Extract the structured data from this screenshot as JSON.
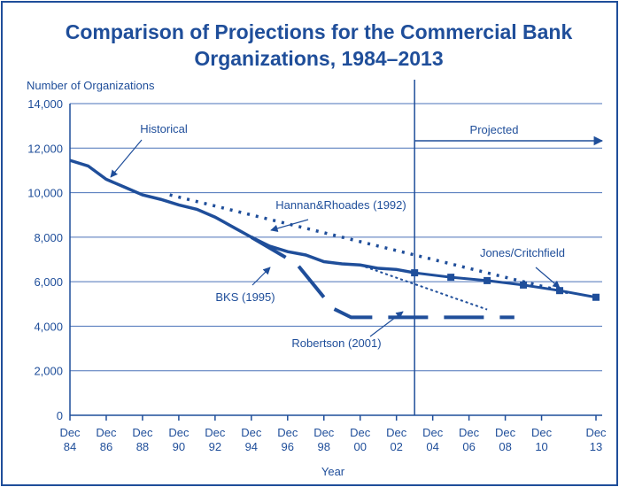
{
  "chart_data": {
    "type": "line",
    "title": [
      "Comparison of Projections for the Commercial Bank",
      "Organizations, 1984–2013"
    ],
    "y_label": "Number of Organizations",
    "x_label": "Year",
    "xlim": [
      1984,
      2013
    ],
    "xticks": [
      {
        "value": 1984,
        "label": "Dec 84"
      },
      {
        "value": 1986,
        "label": "Dec 86"
      },
      {
        "value": 1988,
        "label": "Dec 88"
      },
      {
        "value": 1990,
        "label": "Dec 90"
      },
      {
        "value": 1992,
        "label": "Dec 92"
      },
      {
        "value": 1994,
        "label": "Dec 94"
      },
      {
        "value": 1996,
        "label": "Dec 96"
      },
      {
        "value": 1998,
        "label": "Dec 98"
      },
      {
        "value": 2000,
        "label": "Dec 00"
      },
      {
        "value": 2002,
        "label": "Dec 02"
      },
      {
        "value": 2004,
        "label": "Dec 04"
      },
      {
        "value": 2006,
        "label": "Dec 06"
      },
      {
        "value": 2008,
        "label": "Dec 08"
      },
      {
        "value": 2010,
        "label": "Dec 10"
      },
      {
        "value": 2013,
        "label": "Dec 13"
      }
    ],
    "ylim": [
      0,
      14000
    ],
    "yticks": [
      0,
      {
        "value": 2000,
        "label": "2,000"
      },
      {
        "value": 4000,
        "label": "4,000"
      },
      {
        "value": 6000,
        "label": "6,000"
      },
      {
        "value": 8000,
        "label": "8,000"
      },
      {
        "value": 10000,
        "label": "10,000"
      },
      {
        "value": 12000,
        "label": "12,000"
      },
      {
        "value": 14000,
        "label": "14,000"
      }
    ],
    "grid": true,
    "divider_x": 2003,
    "divider_label": "Projected",
    "series": [
      {
        "name": "Historical",
        "color": "#1f4e9a",
        "style": "solid",
        "x": [
          1984,
          1985,
          1986,
          1987,
          1988,
          1989,
          1990,
          1991,
          1992,
          1993,
          1994,
          1995,
          1996,
          1997,
          1998,
          1999,
          2000,
          2001,
          2002,
          2003
        ],
        "values": [
          11450,
          11200,
          10600,
          10250,
          9900,
          9700,
          9450,
          9250,
          8900,
          8450,
          8000,
          7600,
          7350,
          7200,
          6900,
          6800,
          6750,
          6600,
          6550,
          6400
        ]
      },
      {
        "name": "Hannan&Rhoades (1992)",
        "color": "#1f4e9a",
        "style": "dotted",
        "x": [
          1989.5,
          2011.5
        ],
        "values": [
          9900,
          5500
        ]
      },
      {
        "name": "BKS (1995)",
        "color": "#1f4e9a",
        "style": "dashed",
        "x": [
          1994,
          1996.5,
          1998.5,
          1999.5,
          2008.5
        ],
        "values": [
          8000,
          6800,
          4800,
          4400,
          4400
        ]
      },
      {
        "name": "Robertson (2001)",
        "color": "#1f4e9a",
        "style": "thin-dotted",
        "x": [
          2000,
          2007
        ],
        "values": [
          6750,
          4750
        ]
      },
      {
        "name": "Jones/Critchfield",
        "color": "#1f4e9a",
        "style": "solid-markers",
        "x": [
          2003,
          2005,
          2007,
          2009,
          2011,
          2013
        ],
        "values": [
          6400,
          6200,
          6050,
          5850,
          5600,
          5300
        ]
      }
    ]
  }
}
